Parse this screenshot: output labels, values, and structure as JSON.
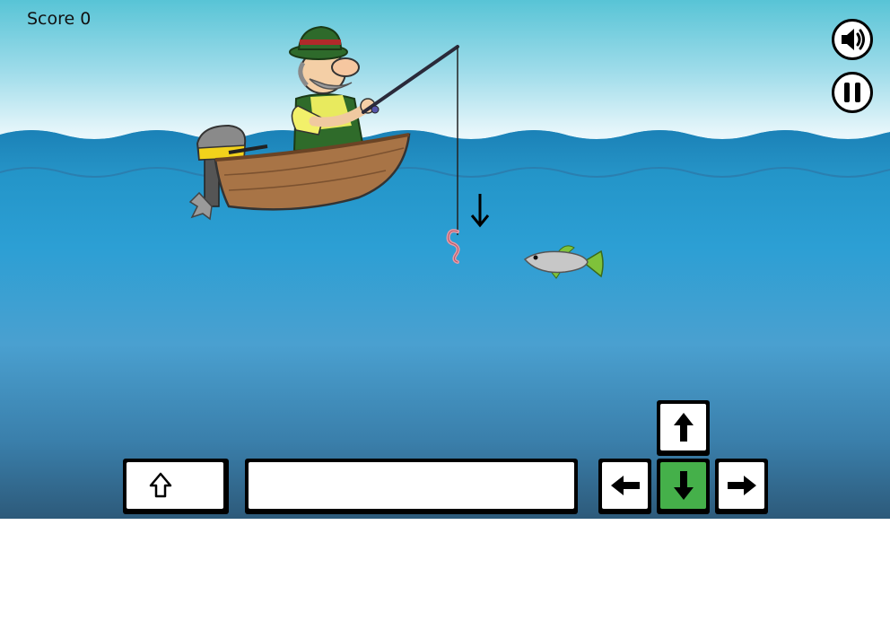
{
  "hud": {
    "score_label": "Score",
    "score_value": "0"
  },
  "buttons": {
    "sound": {
      "icon": "speaker-icon",
      "state": "on"
    },
    "pause": {
      "icon": "pause-icon"
    }
  },
  "controls": {
    "shift": {
      "icon": "shift-arrow-icon"
    },
    "space": {
      "icon": ""
    },
    "up": {
      "icon": "arrow-up-icon"
    },
    "left": {
      "icon": "arrow-left-icon"
    },
    "down": {
      "icon": "arrow-down-icon",
      "active": true
    },
    "right": {
      "icon": "arrow-right-icon"
    }
  },
  "colors": {
    "sky_top": "#58c4d6",
    "water_surface": "#1e8fc2",
    "water_deep": "#2f5f80",
    "active_key": "#45b04a",
    "boat": "#a87446",
    "motor_cap": "#f2d21b"
  }
}
